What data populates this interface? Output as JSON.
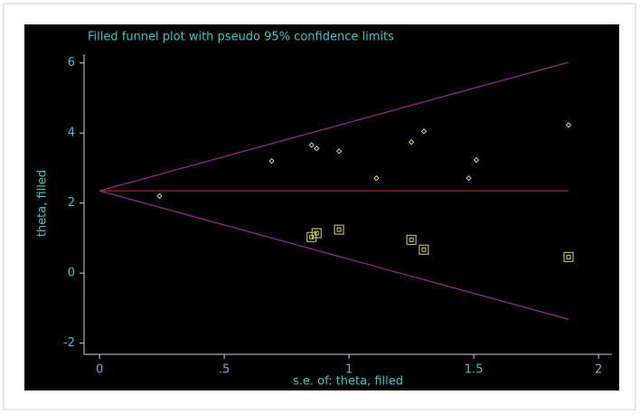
{
  "chart_data": {
    "type": "scatter",
    "title": "Filled funnel plot with pseudo 95% confidence limits",
    "xlabel": "s.e. of: theta, filled",
    "ylabel": "theta, filled",
    "xlim": [
      -0.062,
      2.054
    ],
    "ylim": [
      -2.32,
      6.25
    ],
    "xticks": [
      0,
      {
        "value": 0.5,
        "label": ".5"
      },
      1,
      {
        "value": 1.5,
        "label": "1.5"
      },
      2
    ],
    "yticks": [
      -2,
      0,
      2,
      4,
      6
    ],
    "series": [
      {
        "marker": "diamond",
        "color": "#d8d860",
        "x": [
          0.24,
          0.69,
          0.85,
          0.87,
          0.96,
          1.11,
          1.25,
          1.3,
          1.48,
          1.51,
          1.88
        ],
        "values": [
          2.2,
          3.2,
          3.66,
          3.56,
          3.48,
          2.71,
          3.74,
          4.05,
          2.71,
          3.23,
          4.23
        ]
      },
      {
        "marker": "square",
        "color": "#d8d860",
        "x": [
          0.85,
          0.87,
          0.96,
          1.25,
          1.3,
          1.88
        ],
        "values": [
          1.03,
          1.14,
          1.24,
          0.95,
          0.67,
          0.46
        ]
      }
    ],
    "lines": [
      {
        "color": "#a020a0",
        "x": [
          0,
          1.88
        ],
        "values": [
          2.35,
          6.02
        ]
      },
      {
        "color": "#c0202a",
        "x": [
          0,
          1.88
        ],
        "values": [
          2.35,
          2.35
        ]
      },
      {
        "color": "#a020a0",
        "x": [
          0,
          1.88
        ],
        "values": [
          2.35,
          -1.32
        ]
      }
    ]
  }
}
